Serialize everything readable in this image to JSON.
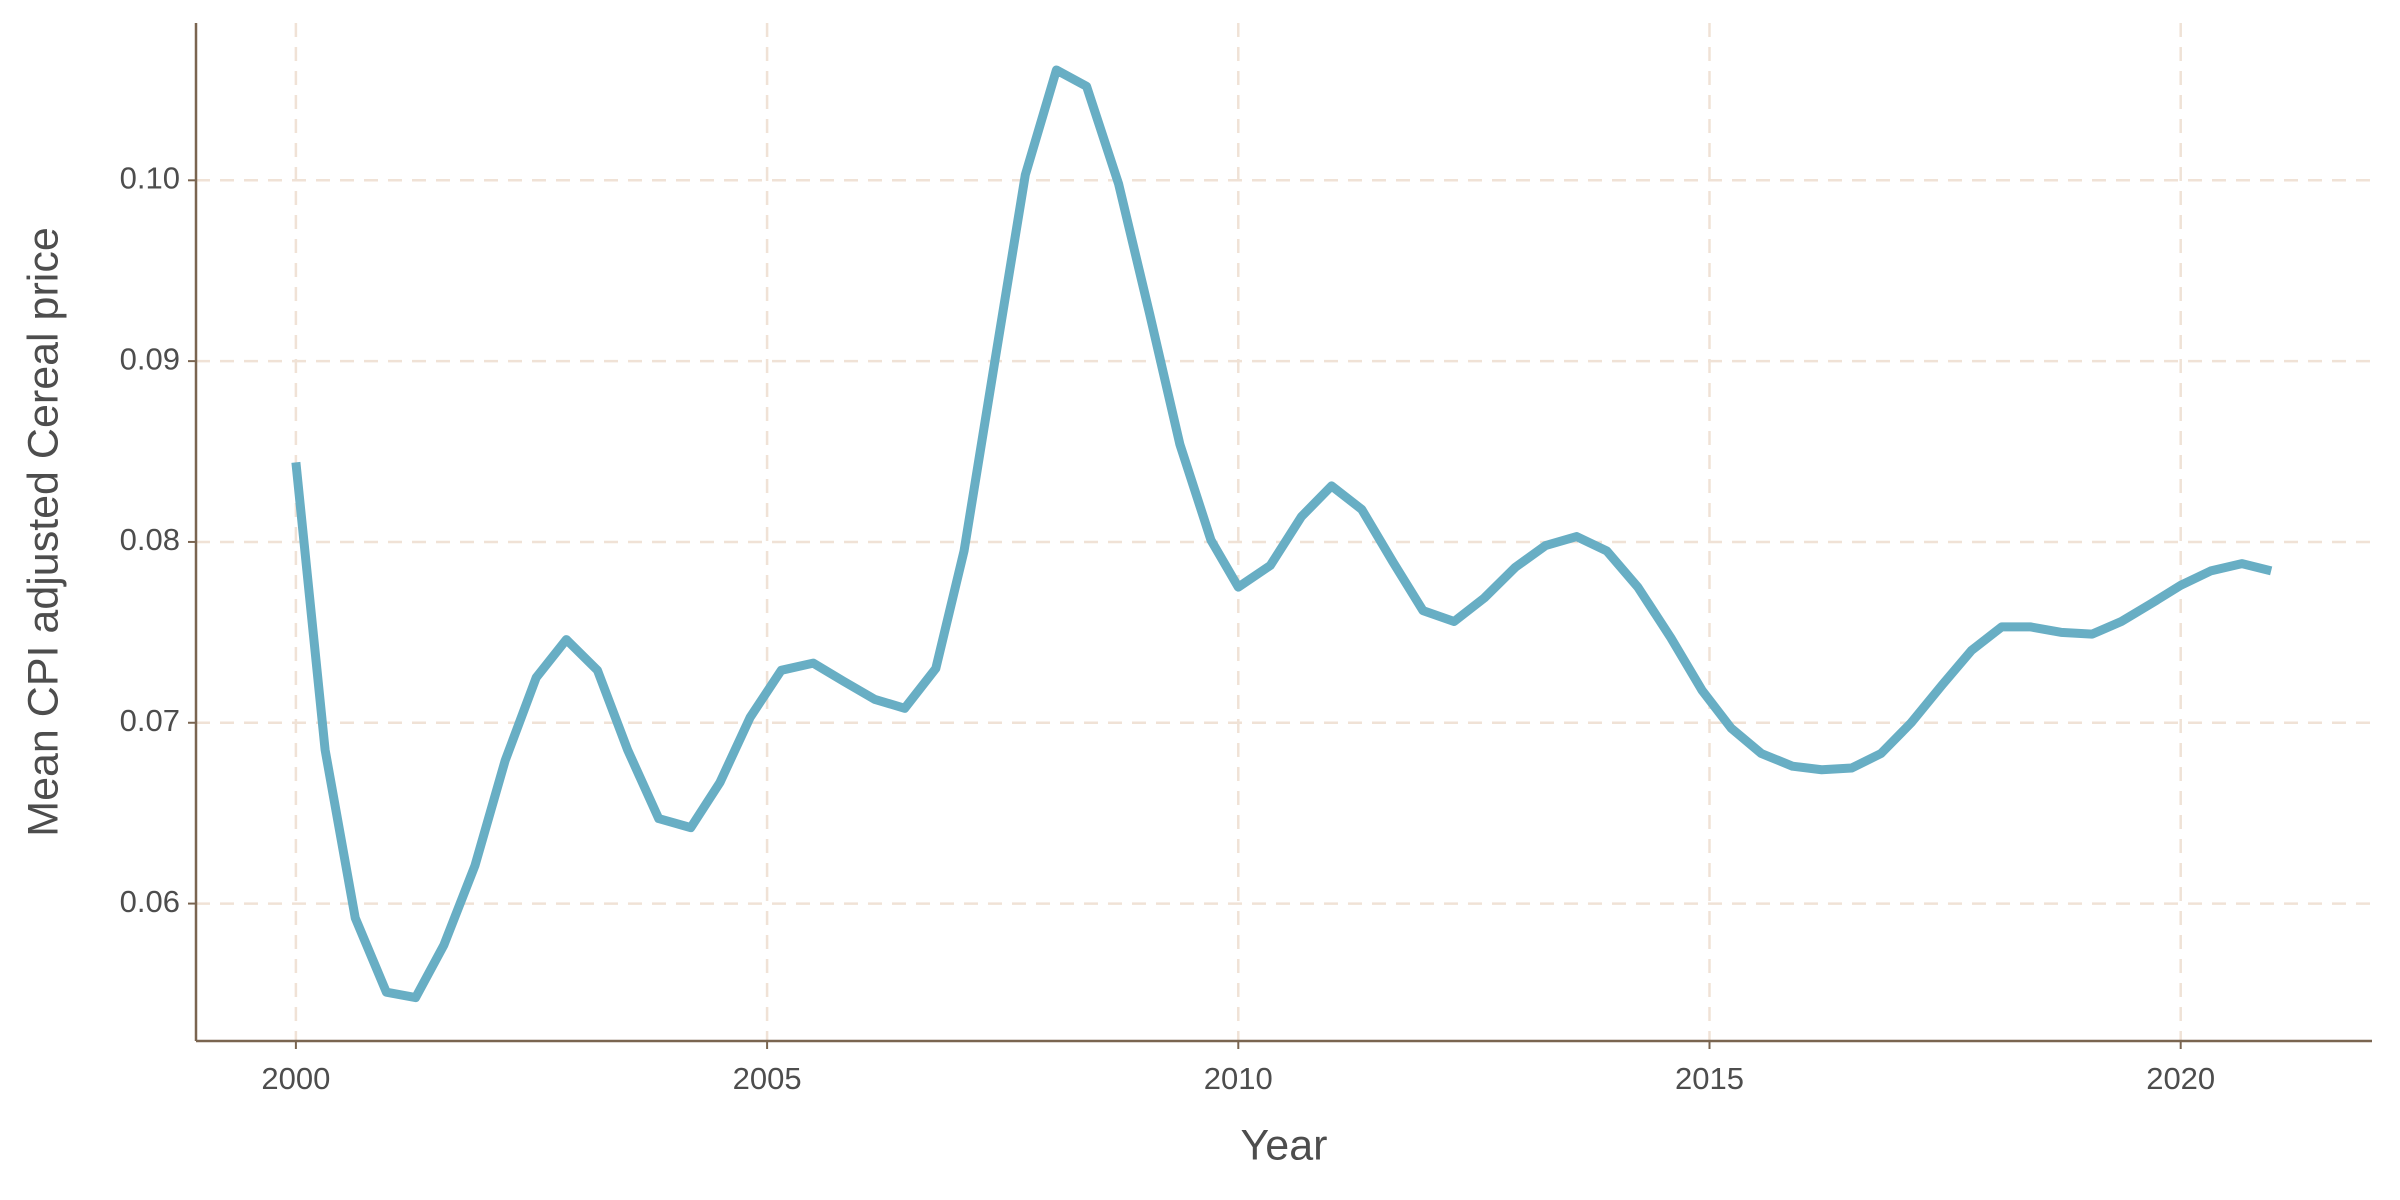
{
  "chart_data": {
    "type": "line",
    "x_label": "Year",
    "y_label": "Mean CPI adjusted Cereal price",
    "xlim": [
      1998.94,
      2022.03
    ],
    "ylim": [
      0.0524,
      0.1087
    ],
    "xticks": [
      2000,
      2005,
      2010,
      2015,
      2020
    ],
    "yticks": [
      0.06,
      0.07,
      0.08,
      0.09,
      {
        "value": 0.1,
        "label": "0.10"
      }
    ],
    "grid": true,
    "x": [
      2000.0,
      2000.31,
      2000.63,
      2000.96,
      2001.27,
      2001.57,
      2001.9,
      2002.22,
      2002.55,
      2002.87,
      2003.2,
      2003.52,
      2003.85,
      2004.19,
      2004.5,
      2004.82,
      2005.15,
      2005.49,
      2005.81,
      2006.14,
      2006.46,
      2006.79,
      2007.09,
      2007.42,
      2007.74,
      2008.07,
      2008.39,
      2008.73,
      2009.06,
      2009.38,
      2009.71,
      2010.0,
      2010.34,
      2010.67,
      2010.99,
      2011.31,
      2011.64,
      2011.96,
      2012.29,
      2012.61,
      2012.94,
      2013.26,
      2013.59,
      2013.91,
      2014.24,
      2014.59,
      2014.92,
      2015.23,
      2015.55,
      2015.88,
      2016.19,
      2016.51,
      2016.82,
      2017.14,
      2017.47,
      2017.78,
      2018.1,
      2018.41,
      2018.73,
      2019.06,
      2019.37,
      2019.69,
      2020.0,
      2020.32,
      2020.65,
      2020.96
    ],
    "series": [
      {
        "color": "#68aec4",
        "values": [
          0.0844,
          0.0685,
          0.0592,
          0.0551,
          0.0548,
          0.0577,
          0.0621,
          0.0679,
          0.0725,
          0.0746,
          0.0729,
          0.0685,
          0.0647,
          0.0642,
          0.0667,
          0.0703,
          0.0729,
          0.0733,
          0.0723,
          0.0713,
          0.0708,
          0.073,
          0.0795,
          0.0901,
          0.1003,
          0.1061,
          0.1052,
          0.0998,
          0.0926,
          0.0854,
          0.0801,
          0.0775,
          0.0787,
          0.0814,
          0.0831,
          0.0818,
          0.0789,
          0.0762,
          0.0756,
          0.0769,
          0.0786,
          0.0798,
          0.0803,
          0.0795,
          0.0775,
          0.0747,
          0.0718,
          0.0697,
          0.0683,
          0.0676,
          0.0674,
          0.0675,
          0.0683,
          0.07,
          0.0721,
          0.074,
          0.0753,
          0.0753,
          0.075,
          0.0749,
          0.0756,
          0.0766,
          0.0776,
          0.0784,
          0.0788,
          0.0784
        ]
      }
    ]
  }
}
